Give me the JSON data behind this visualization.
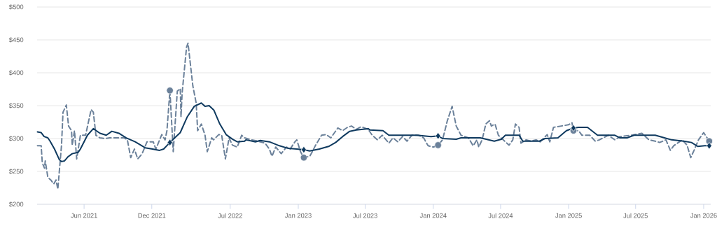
{
  "chart_data": {
    "type": "line",
    "xlim": [
      "2021-01-25",
      "2026-01-20"
    ],
    "xticks": [
      {
        "value": "2021-06-01",
        "label": "Jun 2021"
      },
      {
        "value": "2021-12-01",
        "label": "Dec 2021"
      },
      {
        "value": "2022-07-01",
        "label": "Jul 2022"
      },
      {
        "value": "2023-01-01",
        "label": "Jan 2023"
      },
      {
        "value": "2023-07-01",
        "label": "Jul 2023"
      },
      {
        "value": "2024-01-01",
        "label": "Jan 2024"
      },
      {
        "value": "2024-07-01",
        "label": "Jul 2024"
      },
      {
        "value": "2025-01-01",
        "label": "Jan 2025"
      },
      {
        "value": "2025-07-01",
        "label": "Jul 2025"
      },
      {
        "value": "2026-01-01",
        "label": "Jan 2026"
      }
    ],
    "ylim": [
      200,
      500
    ],
    "yticks": [
      {
        "value": 200,
        "label": "$200"
      },
      {
        "value": 250,
        "label": "$250"
      },
      {
        "value": 300,
        "label": "$300"
      },
      {
        "value": 350,
        "label": "$350"
      },
      {
        "value": 400,
        "label": "$400"
      },
      {
        "value": 450,
        "label": "$450"
      },
      {
        "value": 500,
        "label": "$500"
      }
    ],
    "grid": "y",
    "series": [
      {
        "color": "#6b819a",
        "line_style": "dashed",
        "marker": "none",
        "x": [
          "2021-01-26",
          "2021-02-05",
          "2021-02-08",
          "2021-02-14",
          "2021-02-16",
          "2021-02-23",
          "2021-03-03",
          "2021-03-11",
          "2021-03-17",
          "2021-03-22",
          "2021-04-01",
          "2021-04-05",
          "2021-04-14",
          "2021-04-20",
          "2021-04-28",
          "2021-04-30",
          "2021-05-06",
          "2021-05-12",
          "2021-05-22",
          "2021-06-05",
          "2021-06-20",
          "2021-06-26",
          "2021-07-03",
          "2021-07-14",
          "2021-07-27",
          "2021-08-09",
          "2021-09-17",
          "2021-09-26",
          "2021-10-05",
          "2021-10-15",
          "2021-10-24",
          "2021-11-05",
          "2021-11-18",
          "2021-12-05",
          "2021-12-12",
          "2021-12-28",
          "2022-01-06",
          "2022-01-11",
          "2022-01-19",
          "2022-01-28",
          "2022-02-08",
          "2022-02-16",
          "2022-02-18",
          "2022-02-21",
          "2022-03-05",
          "2022-03-09",
          "2022-03-22",
          "2022-03-31",
          "2022-04-04",
          "2022-04-14",
          "2022-04-24",
          "2022-04-30",
          "2022-05-12",
          "2022-05-17",
          "2022-05-31",
          "2022-06-08",
          "2022-06-18",
          "2022-06-28",
          "2022-07-07",
          "2022-07-20",
          "2022-08-01",
          "2022-08-09",
          "2022-08-27",
          "2022-09-14",
          "2022-10-03",
          "2022-10-15",
          "2022-10-22",
          "2022-11-01",
          "2022-11-16",
          "2022-11-30",
          "2022-12-10",
          "2022-12-23",
          "2022-12-28",
          "2023-01-07",
          "2023-01-16",
          "2023-02-01",
          "2023-02-08",
          "2023-02-16",
          "2023-03-05",
          "2023-03-18",
          "2023-03-30",
          "2023-04-18",
          "2023-05-01",
          "2023-05-14",
          "2023-05-25",
          "2023-06-07",
          "2023-06-20",
          "2023-07-09",
          "2023-07-20",
          "2023-08-03",
          "2023-08-16",
          "2023-09-03",
          "2023-09-14",
          "2023-09-27",
          "2023-10-10",
          "2023-10-22",
          "2023-11-04",
          "2023-11-23",
          "2023-12-06",
          "2023-12-18",
          "2024-01-01",
          "2024-01-14",
          "2024-01-26",
          "2024-02-08",
          "2024-02-21",
          "2024-03-03",
          "2024-03-16",
          "2024-04-05",
          "2024-04-18",
          "2024-04-28",
          "2024-05-03",
          "2024-05-12",
          "2024-05-22",
          "2024-06-01",
          "2024-06-06",
          "2024-06-16",
          "2024-06-25",
          "2024-07-08",
          "2024-07-24",
          "2024-08-03",
          "2024-08-10",
          "2024-08-20",
          "2024-08-25",
          "2024-09-08",
          "2024-09-21",
          "2024-10-05",
          "2024-10-16",
          "2024-11-04",
          "2024-11-11",
          "2024-11-21",
          "2024-12-12",
          "2025-01-01",
          "2025-01-10",
          "2025-01-14",
          "2025-01-28",
          "2025-02-06",
          "2025-02-27",
          "2025-03-14",
          "2025-03-25",
          "2025-04-18",
          "2025-05-06",
          "2025-05-20",
          "2025-06-20",
          "2025-07-18",
          "2025-08-06",
          "2025-08-23",
          "2025-09-04",
          "2025-09-21",
          "2025-10-03",
          "2025-10-12",
          "2025-11-04",
          "2025-11-17",
          "2025-11-27",
          "2025-12-06",
          "2025-12-18",
          "2026-01-01",
          "2026-01-16"
        ],
        "values": [
          289,
          289,
          263,
          255,
          266,
          241,
          237,
          231,
          237,
          223,
          290,
          340,
          351,
          319,
          312,
          290,
          312,
          269,
          305,
          305,
          344,
          340,
          305,
          301,
          300,
          301,
          301,
          298,
          271,
          284,
          269,
          277,
          295,
          295,
          284,
          306,
          298,
          312,
          373,
          280,
          372,
          376,
          333,
          369,
          439,
          445,
          380,
          354,
          312,
          322,
          305,
          280,
          301,
          298,
          306,
          305,
          269,
          301,
          290,
          287,
          305,
          301,
          298,
          296,
          293,
          284,
          273,
          287,
          277,
          287,
          284,
          295,
          298,
          280,
          271,
          273,
          280,
          289,
          305,
          306,
          301,
          316,
          312,
          317,
          319,
          314,
          318,
          314,
          305,
          298,
          305,
          293,
          301,
          295,
          303,
          296,
          305,
          305,
          301,
          289,
          287,
          290,
          298,
          327,
          349,
          319,
          305,
          301,
          289,
          298,
          287,
          298,
          322,
          327,
          319,
          322,
          305,
          298,
          290,
          298,
          322,
          317,
          293,
          298,
          296,
          298,
          295,
          306,
          295,
          317,
          319,
          321,
          324,
          312,
          312,
          305,
          305,
          296,
          298,
          305,
          298,
          303,
          305,
          308,
          298,
          296,
          294,
          298,
          282,
          289,
          298,
          290,
          271,
          282,
          298,
          309,
          296
        ]
      },
      {
        "color": "#0f3a5f",
        "line_style": "solid",
        "marker": "none",
        "x": [
          "2021-01-26",
          "2021-02-05",
          "2021-02-13",
          "2021-02-23",
          "2021-03-01",
          "2021-03-13",
          "2021-03-26",
          "2021-04-01",
          "2021-04-09",
          "2021-04-18",
          "2021-04-30",
          "2021-05-16",
          "2021-05-22",
          "2021-06-10",
          "2021-06-26",
          "2021-07-14",
          "2021-07-31",
          "2021-08-15",
          "2021-09-03",
          "2021-09-23",
          "2021-10-17",
          "2021-11-13",
          "2021-12-03",
          "2021-12-22",
          "2022-01-02",
          "2022-01-19",
          "2022-01-30",
          "2022-02-16",
          "2022-03-07",
          "2022-03-26",
          "2022-04-14",
          "2022-04-24",
          "2022-05-05",
          "2022-05-18",
          "2022-06-03",
          "2022-06-20",
          "2022-07-07",
          "2022-07-20",
          "2022-08-09",
          "2022-08-13",
          "2022-09-07",
          "2022-09-20",
          "2022-10-15",
          "2022-11-11",
          "2022-12-05",
          "2022-12-28",
          "2023-01-16",
          "2023-02-01",
          "2023-02-27",
          "2023-03-24",
          "2023-04-12",
          "2023-05-01",
          "2023-05-20",
          "2023-06-07",
          "2023-07-09",
          "2023-07-14",
          "2023-08-18",
          "2023-09-03",
          "2023-09-27",
          "2023-11-18",
          "2023-12-26",
          "2024-01-14",
          "2024-01-26",
          "2024-03-03",
          "2024-03-16",
          "2024-04-24",
          "2024-05-07",
          "2024-06-14",
          "2024-07-03",
          "2024-07-14",
          "2024-08-20",
          "2024-08-30",
          "2024-10-14",
          "2024-10-29",
          "2024-12-03",
          "2024-12-26",
          "2025-01-14",
          "2025-01-28",
          "2025-02-21",
          "2025-03-20",
          "2025-05-06",
          "2025-05-20",
          "2025-06-08",
          "2025-06-27",
          "2025-08-23",
          "2025-09-17",
          "2025-10-06",
          "2025-11-08",
          "2025-11-29",
          "2025-12-16",
          "2026-01-04",
          "2026-01-16"
        ],
        "values": [
          310,
          309,
          303,
          301,
          296,
          284,
          268,
          265,
          266,
          272,
          277,
          279,
          284,
          305,
          315,
          308,
          305,
          311,
          308,
          301,
          295,
          286,
          284,
          282,
          284,
          294,
          300,
          309,
          333,
          349,
          354,
          349,
          350,
          343,
          322,
          306,
          299,
          295,
          296,
          298,
          295,
          297,
          295,
          289,
          285,
          284,
          283,
          281,
          284,
          288,
          294,
          303,
          311,
          313,
          315,
          313,
          312,
          305,
          305,
          305,
          303,
          304,
          300,
          299,
          301,
          301,
          301,
          296,
          299,
          305,
          305,
          296,
          296,
          300,
          301,
          312,
          316,
          317,
          317,
          305,
          305,
          301,
          301,
          305,
          305,
          301,
          298,
          296,
          294,
          288,
          289,
          289
        ]
      },
      {
        "type": "scatter",
        "color": "#6b819a",
        "marker": "circle",
        "x": [
          "2022-01-19",
          "2023-01-16",
          "2024-01-14",
          "2025-01-14",
          "2026-01-16"
        ],
        "values": [
          373,
          271,
          290,
          312,
          296
        ]
      },
      {
        "type": "scatter",
        "color": "#0f3a5f",
        "marker": "diamond",
        "x": [
          "2022-01-19",
          "2023-01-16",
          "2024-01-14",
          "2025-01-14",
          "2026-01-16"
        ],
        "values": [
          294,
          283,
          304,
          316,
          289
        ]
      }
    ]
  }
}
